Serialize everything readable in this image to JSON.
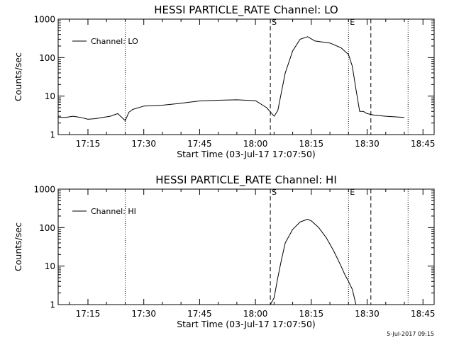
{
  "chart_data": [
    {
      "type": "line",
      "title": "HESSI PARTICLE_RATE Channel: LO",
      "xlabel": "Start Time (03-Jul-17 17:07:50)",
      "ylabel": "Counts/sec",
      "y_scale": "log",
      "ylim": [
        1,
        1000
      ],
      "xlim": [
        "17:07",
        "18:48"
      ],
      "x_ticks": [
        "17:15",
        "17:30",
        "17:45",
        "18:00",
        "18:15",
        "18:30",
        "18:45"
      ],
      "y_ticks": [
        "1",
        "10",
        "100",
        "1000"
      ],
      "legend": "top-left",
      "grid": false,
      "series": [
        {
          "name": "Channel: LO",
          "x": [
            "17:07",
            "17:09",
            "17:11",
            "17:13",
            "17:15",
            "17:17",
            "17:19",
            "17:21",
            "17:23",
            "17:25",
            "17:26",
            "17:27",
            "17:30",
            "17:35",
            "17:40",
            "17:45",
            "17:50",
            "17:55",
            "18:00",
            "18:03",
            "18:05",
            "18:06",
            "18:08",
            "18:10",
            "18:12",
            "18:14",
            "18:16",
            "18:20",
            "18:23",
            "18:25",
            "18:26",
            "18:27",
            "18:28",
            "18:29",
            "18:30",
            "18:32",
            "18:35",
            "18:40"
          ],
          "y": [
            2.8,
            2.8,
            3.0,
            2.8,
            2.5,
            2.6,
            2.8,
            3.0,
            3.5,
            2.3,
            3.8,
            4.5,
            5.5,
            5.8,
            6.5,
            7.5,
            7.8,
            8.0,
            7.6,
            5.0,
            3.0,
            4.2,
            40,
            150,
            300,
            350,
            270,
            240,
            180,
            120,
            60,
            15,
            4.0,
            4.0,
            3.5,
            3.2,
            3.0,
            2.8
          ]
        }
      ],
      "markers": [
        {
          "time": "17:25",
          "style": "dotted"
        },
        {
          "time": "18:04",
          "style": "dashed",
          "label": "S"
        },
        {
          "time": "18:25",
          "style": "dotted",
          "label": "E"
        },
        {
          "time": "18:31",
          "style": "dashed"
        },
        {
          "time": "18:41",
          "style": "dotted"
        }
      ]
    },
    {
      "type": "line",
      "title": "HESSI PARTICLE_RATE Channel: HI",
      "xlabel": "Start Time (03-Jul-17 17:07:50)",
      "ylabel": "Counts/sec",
      "y_scale": "log",
      "ylim": [
        1,
        1000
      ],
      "xlim": [
        "17:07",
        "18:48"
      ],
      "x_ticks": [
        "17:15",
        "17:30",
        "17:45",
        "18:00",
        "18:15",
        "18:30",
        "18:45"
      ],
      "y_ticks": [
        "1",
        "10",
        "100",
        "1000"
      ],
      "legend": "top-left",
      "grid": false,
      "series": [
        {
          "name": "Channel: HI",
          "x": [
            "18:04",
            "18:05",
            "18:06",
            "18:07",
            "18:08",
            "18:10",
            "18:12",
            "18:14",
            "18:15",
            "18:17",
            "18:19",
            "18:21",
            "18:23",
            "18:24",
            "18:25",
            "18:26",
            "18:27"
          ],
          "y": [
            1,
            1.5,
            5,
            15,
            40,
            90,
            140,
            165,
            150,
            100,
            55,
            25,
            10,
            6,
            4,
            2.5,
            1
          ]
        }
      ],
      "markers": [
        {
          "time": "17:25",
          "style": "dotted"
        },
        {
          "time": "18:04",
          "style": "dashed",
          "label": "S"
        },
        {
          "time": "18:25",
          "style": "dotted",
          "label": "E"
        },
        {
          "time": "18:31",
          "style": "dashed"
        },
        {
          "time": "18:41",
          "style": "dotted"
        }
      ]
    }
  ],
  "footer": {
    "timestamp": "5-Jul-2017 09:15"
  }
}
